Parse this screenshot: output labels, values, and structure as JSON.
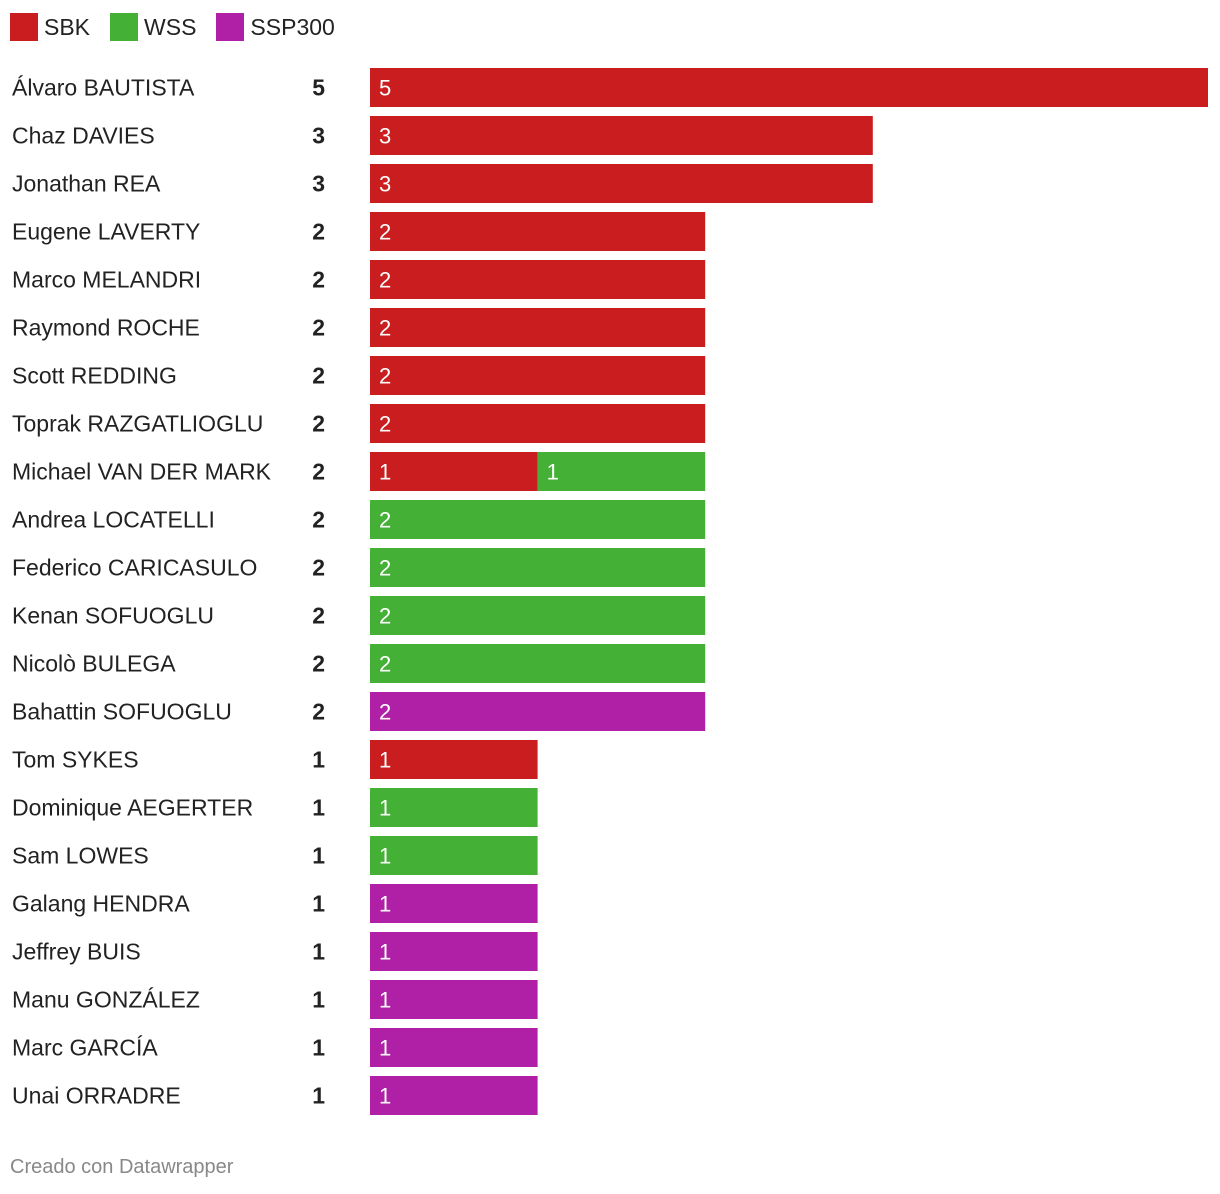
{
  "chart_data": {
    "type": "bar",
    "orientation": "horizontal",
    "stacked": true,
    "legend_position": "top-left",
    "series": [
      {
        "name": "SBK",
        "color": "#c91d1f"
      },
      {
        "name": "WSS",
        "color": "#44b035"
      },
      {
        "name": "SSP300",
        "color": "#b020a6"
      }
    ],
    "rows": [
      {
        "name": "Álvaro BAUTISTA",
        "total": "5",
        "values": [
          5,
          0,
          0
        ]
      },
      {
        "name": "Chaz DAVIES",
        "total": "3",
        "values": [
          3,
          0,
          0
        ]
      },
      {
        "name": "Jonathan REA",
        "total": "3",
        "values": [
          3,
          0,
          0
        ]
      },
      {
        "name": "Eugene LAVERTY",
        "total": "2",
        "values": [
          2,
          0,
          0
        ]
      },
      {
        "name": "Marco MELANDRI",
        "total": "2",
        "values": [
          2,
          0,
          0
        ]
      },
      {
        "name": "Raymond ROCHE",
        "total": "2",
        "values": [
          2,
          0,
          0
        ]
      },
      {
        "name": "Scott REDDING",
        "total": "2",
        "values": [
          2,
          0,
          0
        ]
      },
      {
        "name": "Toprak RAZGATLIOGLU",
        "total": "2",
        "values": [
          2,
          0,
          0
        ]
      },
      {
        "name": "Michael VAN DER MARK",
        "total": "2",
        "values": [
          1,
          1,
          0
        ]
      },
      {
        "name": "Andrea LOCATELLI",
        "total": "2",
        "values": [
          0,
          2,
          0
        ]
      },
      {
        "name": "Federico CARICASULO",
        "total": "2",
        "values": [
          0,
          2,
          0
        ]
      },
      {
        "name": "Kenan SOFUOGLU",
        "total": "2",
        "values": [
          0,
          2,
          0
        ]
      },
      {
        "name": "Nicolò BULEGA",
        "total": "2",
        "values": [
          0,
          2,
          0
        ]
      },
      {
        "name": "Bahattin SOFUOGLU",
        "total": "2",
        "values": [
          0,
          0,
          2
        ]
      },
      {
        "name": "Tom SYKES",
        "total": "1",
        "values": [
          1,
          0,
          0
        ]
      },
      {
        "name": "Dominique AEGERTER",
        "total": "1",
        "values": [
          0,
          1,
          0
        ]
      },
      {
        "name": "Sam LOWES",
        "total": "1",
        "values": [
          0,
          1,
          0
        ]
      },
      {
        "name": "Galang HENDRA",
        "total": "1",
        "values": [
          0,
          0,
          1
        ]
      },
      {
        "name": "Jeffrey BUIS",
        "total": "1",
        "values": [
          0,
          0,
          1
        ]
      },
      {
        "name": "Manu GONZÁLEZ",
        "total": "1",
        "values": [
          0,
          0,
          1
        ]
      },
      {
        "name": "Marc GARCÍA",
        "total": "1",
        "values": [
          0,
          0,
          1
        ]
      },
      {
        "name": "Unai ORRADRE",
        "total": "1",
        "values": [
          0,
          0,
          1
        ]
      }
    ],
    "xlim": [
      0,
      5
    ]
  },
  "credit": "Creado con Datawrapper"
}
